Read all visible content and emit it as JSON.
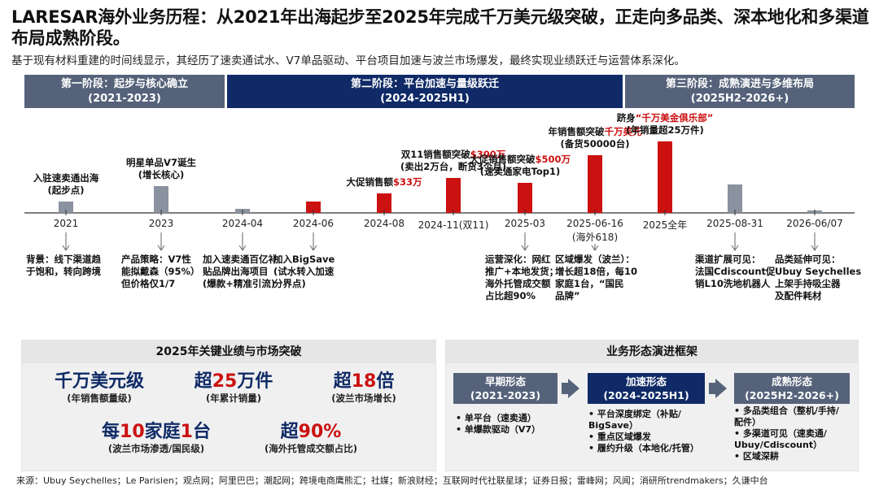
{
  "page": {
    "title": "LARESAR海外业务历程：从2021年出海起步至2025年完成千万美元级突破，正走向多品类、深本地化和多渠道布局成熟阶段。",
    "subtitle": "基于现有材料重建的时间线显示，其经历了速卖通试水、V7单品驱动、平台项目加速与波兰市场爆发，最终实现业绩跃迁与运营体系深化。",
    "source": "来源：Ubuy Seychelles；Le Parisien；观点网；阿里巴巴；潮起网；跨境电商鹰熊汇；社媒；新浪财经；互联网时代社联星球；证券日报；雷峰网；风闻；消研所trendmakers；久谦中台"
  },
  "phases": [
    {
      "name": "第一阶段：起步与核心确立",
      "period": "(2021-2023)",
      "color": "#55627a"
    },
    {
      "name": "第二阶段：平台加速与量级跃迁",
      "period": "(2024-2025H1)",
      "color": "#0f2a66"
    },
    {
      "name": "第三阶段：成熟演进与多维布局",
      "period": "(2025H2-2026+)",
      "color": "#55627a"
    }
  ],
  "chart_data": {
    "type": "bar",
    "categories": [
      "2021",
      "2023",
      "2024-04",
      "2024-06",
      "2024-08",
      "2024-11(双11)",
      "2025-03",
      "2025-06-16",
      "2025全年",
      "2025-08-31",
      "2026-06/07"
    ],
    "category_sublabels": [
      "",
      "",
      "",
      "",
      "",
      "",
      "",
      "(海外618)",
      "",
      "",
      ""
    ],
    "values": [
      14,
      33,
      5,
      14,
      24,
      43,
      37,
      71,
      88,
      35,
      3
    ],
    "bar_colors": [
      "#8a92a0",
      "#8a92a0",
      "#8a92a0",
      "#cc1111",
      "#cc1111",
      "#cc1111",
      "#cc1111",
      "#cc1111",
      "#cc1111",
      "#8a92a0",
      "#8a92a0"
    ],
    "ylim": [
      0,
      100
    ],
    "annotations": [
      {
        "lines": [
          [
            "入驻速卖通出海",
            ""
          ],
          [
            "(起步点)",
            ""
          ]
        ]
      },
      {
        "lines": [
          [
            "明星单品V7诞生",
            ""
          ],
          [
            "(增长核心)",
            ""
          ]
        ]
      },
      null,
      null,
      {
        "lines": [
          [
            "大促销售额",
            "$33万"
          ]
        ]
      },
      {
        "lines": [
          [
            "双11销售额突破",
            "$300万"
          ],
          [
            "(卖出2万台，断货3个月)",
            ""
          ]
        ]
      },
      {
        "lines": [
          [
            "大促销售额突破",
            "$500万"
          ],
          [
            "(速卖通家电Top1)",
            ""
          ]
        ]
      },
      {
        "lines": [
          [
            "年销售额突破",
            "千万美元"
          ],
          [
            "(备货50000台)",
            ""
          ]
        ]
      },
      {
        "lines": [
          [
            "跻身",
            "“千万美金俱乐部”"
          ],
          [
            "(年销量超25万件)",
            ""
          ]
        ]
      },
      null,
      null
    ],
    "notes": [
      {
        "cat": 0,
        "lines": [
          "背景：线下渠道趋",
          "于饱和，转向跨境"
        ]
      },
      {
        "cat": 1,
        "lines": [
          "产品策略：V7性",
          "能拟戴森（95%）",
          "但价格仅1/7"
        ]
      },
      {
        "cat": 2,
        "lines": [
          "加入速卖通百亿补",
          "贴品牌出海项目",
          "(爆款+精准引流)"
        ]
      },
      {
        "cat": 3,
        "lines": [
          "加入BigSave",
          "(试水转入加速",
          "分界点)"
        ]
      },
      {
        "cat": 6,
        "lines": [
          "运营深化：网红",
          "推广+本地发货；",
          "海外托管成交额",
          "占比超90%"
        ]
      },
      {
        "cat": 7,
        "lines": [
          "区域爆发（波兰）：",
          "增长超18倍，每10",
          "家庭1台，“国民",
          "品牌”"
        ]
      },
      {
        "cat": 9,
        "lines": [
          "渠道扩展可见：",
          "法国Cdiscount促",
          "销L10洗地机器人"
        ]
      },
      {
        "cat": 10,
        "lines": [
          "品类延伸可见：",
          "Ubuy Seychelles",
          "上架手持吸尘器",
          "及配件耗材"
        ]
      }
    ]
  },
  "kpi_panel": {
    "header": "2025年关键业绩与市场突破",
    "items": [
      {
        "pre": "",
        "red": "",
        "rest": "千万美元级",
        "caption": "(年销售额量级)"
      },
      {
        "pre": "超",
        "red": "25",
        "rest": "万件",
        "caption": "(年累计销量)"
      },
      {
        "pre": "超",
        "red": "18",
        "rest": "倍",
        "caption": "(波兰市场增长)"
      },
      {
        "pre": "每",
        "red": "10",
        "rest": "家庭",
        "red2": "1",
        "rest2": "台",
        "caption": "(波兰市场渗透/国民级)"
      },
      {
        "pre": "超",
        "red": "90%",
        "rest": "",
        "caption": "(海外托管成交额占比)"
      }
    ]
  },
  "framework_panel": {
    "header": "业务形态演进框架",
    "stages": [
      {
        "name": "早期形态",
        "period": "(2021-2023)",
        "color": "#55627a",
        "bullets": [
          "• 单平台（速卖通）",
          "• 单爆款驱动（V7）"
        ]
      },
      {
        "name": "加速形态",
        "period": "(2024-2025H1)",
        "color": "#0f2a66",
        "bullets": [
          "• 平台深度绑定（补贴/",
          "  BigSave）",
          "• 重点区域爆发",
          "• 履约升级（本地化/托管）"
        ]
      },
      {
        "name": "成熟形态",
        "period": "(2025H2-2026+)",
        "color": "#55627a",
        "bullets": [
          "• 多品类组合（整机/手持/",
          "  配件）",
          "• 多渠道可见（速卖通/",
          "  Ubuy/Cdiscount）",
          "• 区域深耕"
        ]
      }
    ]
  }
}
